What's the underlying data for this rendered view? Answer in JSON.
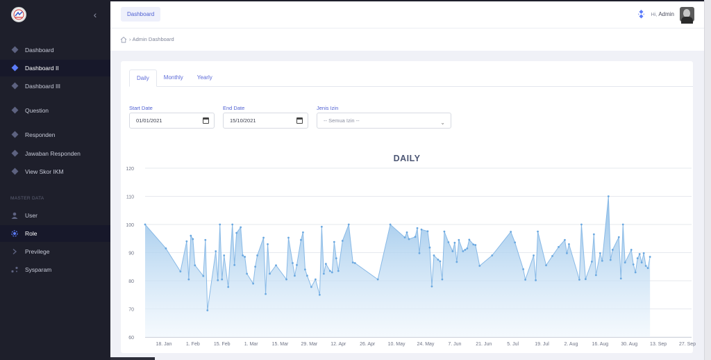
{
  "sidebar": {
    "items": [
      {
        "label": "Dashboard",
        "icon": "layers-icon"
      },
      {
        "label": "Dashboard II",
        "icon": "layers-icon"
      },
      {
        "label": "Dashboard III",
        "icon": "layers-icon"
      },
      {
        "label": "Question",
        "icon": "layers-icon"
      },
      {
        "label": "Responden",
        "icon": "layers-icon"
      },
      {
        "label": "Jawaban Responden",
        "icon": "layers-icon"
      },
      {
        "label": "View Skor IKM",
        "icon": "layers-icon"
      }
    ],
    "section_label": "MASTER DATA",
    "master_items": [
      {
        "label": "User",
        "icon": "user-icon"
      },
      {
        "label": "Role",
        "icon": "role-icon"
      },
      {
        "label": "Previlege",
        "icon": "chevron-right-icon"
      },
      {
        "label": "Sysparam",
        "icon": "settings-icon"
      }
    ]
  },
  "header": {
    "tab_label": "Dashboard",
    "greeting": "Hi,",
    "username": "Admin"
  },
  "breadcrumb": {
    "current": "Admin Dashboard"
  },
  "tabs": [
    "Daily",
    "Monthly",
    "Yearly"
  ],
  "filters": {
    "start_label": "Start Date",
    "start_value": "01/01/2021",
    "end_label": "End Date",
    "end_value": "15/10/2021",
    "jenis_label": "Jenis Izin",
    "jenis_value": "-- Semua Izin --"
  },
  "colors": {
    "accent": "#4e5fd2",
    "sidebar_bg": "#1e1f2b",
    "area_top": "#8fbfe8",
    "area_bottom": "#eef6fd",
    "line": "#88b9e6"
  },
  "chart_data": {
    "type": "area",
    "title": "DAILY",
    "ylim": [
      60,
      120
    ],
    "yticks": [
      60,
      70,
      80,
      90,
      100,
      110,
      120
    ],
    "xlim_day_of_year": [
      9,
      272
    ],
    "xticks": [
      {
        "label": "18. Jan",
        "day": 18
      },
      {
        "label": "1. Feb",
        "day": 32
      },
      {
        "label": "15. Feb",
        "day": 46
      },
      {
        "label": "1. Mar",
        "day": 60
      },
      {
        "label": "15. Mar",
        "day": 74
      },
      {
        "label": "29. Mar",
        "day": 88
      },
      {
        "label": "12. Apr",
        "day": 102
      },
      {
        "label": "26. Apr",
        "day": 116
      },
      {
        "label": "10. May",
        "day": 130
      },
      {
        "label": "24. May",
        "day": 144
      },
      {
        "label": "7. Jun",
        "day": 158
      },
      {
        "label": "21. Jun",
        "day": 172
      },
      {
        "label": "5. Jul",
        "day": 186
      },
      {
        "label": "19. Jul",
        "day": 200
      },
      {
        "label": "2. Aug",
        "day": 214
      },
      {
        "label": "16. Aug",
        "day": 228
      },
      {
        "label": "30. Aug",
        "day": 242
      },
      {
        "label": "13. Sep",
        "day": 256
      },
      {
        "label": "27. Sep",
        "day": 270
      }
    ],
    "grid": true,
    "legend": "none",
    "points": [
      [
        9,
        100
      ],
      [
        19,
        91.5
      ],
      [
        26,
        83.3
      ],
      [
        29,
        94
      ],
      [
        30,
        80.5
      ],
      [
        31,
        96
      ],
      [
        32,
        94.8
      ],
      [
        33,
        85.5
      ],
      [
        37,
        81.7
      ],
      [
        38,
        94.5
      ],
      [
        39,
        69.5
      ],
      [
        43,
        90.5
      ],
      [
        44,
        80.2
      ],
      [
        45,
        100
      ],
      [
        46,
        80.5
      ],
      [
        47,
        89
      ],
      [
        49,
        77.8
      ],
      [
        51,
        100
      ],
      [
        52,
        85.6
      ],
      [
        53,
        97
      ],
      [
        55,
        99
      ],
      [
        56,
        89
      ],
      [
        57,
        88.5
      ],
      [
        58,
        82.5
      ],
      [
        61,
        79
      ],
      [
        62,
        85
      ],
      [
        63,
        89
      ],
      [
        66,
        95.3
      ],
      [
        67,
        75.3
      ],
      [
        68,
        93
      ],
      [
        69,
        82.5
      ],
      [
        72,
        85.5
      ],
      [
        77,
        80.5
      ],
      [
        78,
        95.3
      ],
      [
        80,
        86.3
      ],
      [
        81,
        81.8
      ],
      [
        82,
        85.6
      ],
      [
        84,
        94.5
      ],
      [
        85,
        97.2
      ],
      [
        86,
        84
      ],
      [
        87,
        81.8
      ],
      [
        89,
        77.8
      ],
      [
        91,
        80.5
      ],
      [
        93,
        75
      ],
      [
        94,
        99.2
      ],
      [
        95,
        82.5
      ],
      [
        96,
        86
      ],
      [
        98,
        83.5
      ],
      [
        99,
        83
      ],
      [
        100,
        93.8
      ],
      [
        101,
        88
      ],
      [
        102,
        83.5
      ],
      [
        104,
        94.2
      ],
      [
        107,
        100
      ],
      [
        109,
        86.5
      ],
      [
        110,
        86.3
      ],
      [
        121,
        80.5
      ],
      [
        127,
        100
      ],
      [
        134,
        95.4
      ],
      [
        135,
        97.2
      ],
      [
        136,
        94.8
      ],
      [
        139,
        95.6
      ],
      [
        140,
        98.7
      ],
      [
        141,
        89.8
      ],
      [
        142,
        98.2
      ],
      [
        145,
        97.6
      ],
      [
        146,
        91.8
      ],
      [
        147,
        78
      ],
      [
        148,
        89
      ],
      [
        150,
        87.5
      ],
      [
        151,
        86.9
      ],
      [
        152,
        80.5
      ],
      [
        153,
        97.5
      ],
      [
        155,
        93.7
      ],
      [
        157,
        90.5
      ],
      [
        158,
        93.5
      ],
      [
        159,
        86.7
      ],
      [
        160,
        94.5
      ],
      [
        162,
        90.5
      ],
      [
        163,
        91
      ],
      [
        164,
        91.5
      ],
      [
        165,
        94.6
      ],
      [
        167,
        92.9
      ],
      [
        168,
        92.7
      ],
      [
        170,
        85.3
      ],
      [
        176,
        89
      ],
      [
        185,
        97.4
      ],
      [
        187,
        93.6
      ],
      [
        191,
        84.1
      ],
      [
        192,
        80.4
      ],
      [
        196,
        89
      ],
      [
        197,
        80.2
      ],
      [
        198,
        97.5
      ],
      [
        202,
        85.5
      ],
      [
        205,
        88.8
      ],
      [
        208,
        92
      ],
      [
        211,
        94.5
      ],
      [
        212,
        89.8
      ],
      [
        213,
        93
      ],
      [
        218,
        80.4
      ],
      [
        219,
        100
      ],
      [
        221,
        80.6
      ],
      [
        224,
        86.8
      ],
      [
        225,
        96.5
      ],
      [
        226,
        82
      ],
      [
        228,
        89.8
      ],
      [
        229,
        87.1
      ],
      [
        232,
        110
      ],
      [
        233,
        87.4
      ],
      [
        234,
        91
      ],
      [
        237,
        95.5
      ],
      [
        238,
        80.8
      ],
      [
        239,
        100
      ],
      [
        240,
        86.5
      ],
      [
        243,
        91
      ],
      [
        244,
        85.8
      ],
      [
        245,
        83
      ],
      [
        246,
        88
      ],
      [
        247,
        89.5
      ],
      [
        248,
        86.5
      ],
      [
        249,
        89.8
      ],
      [
        250,
        85.3
      ],
      [
        251,
        84.5
      ],
      [
        252,
        88.5
      ]
    ]
  }
}
